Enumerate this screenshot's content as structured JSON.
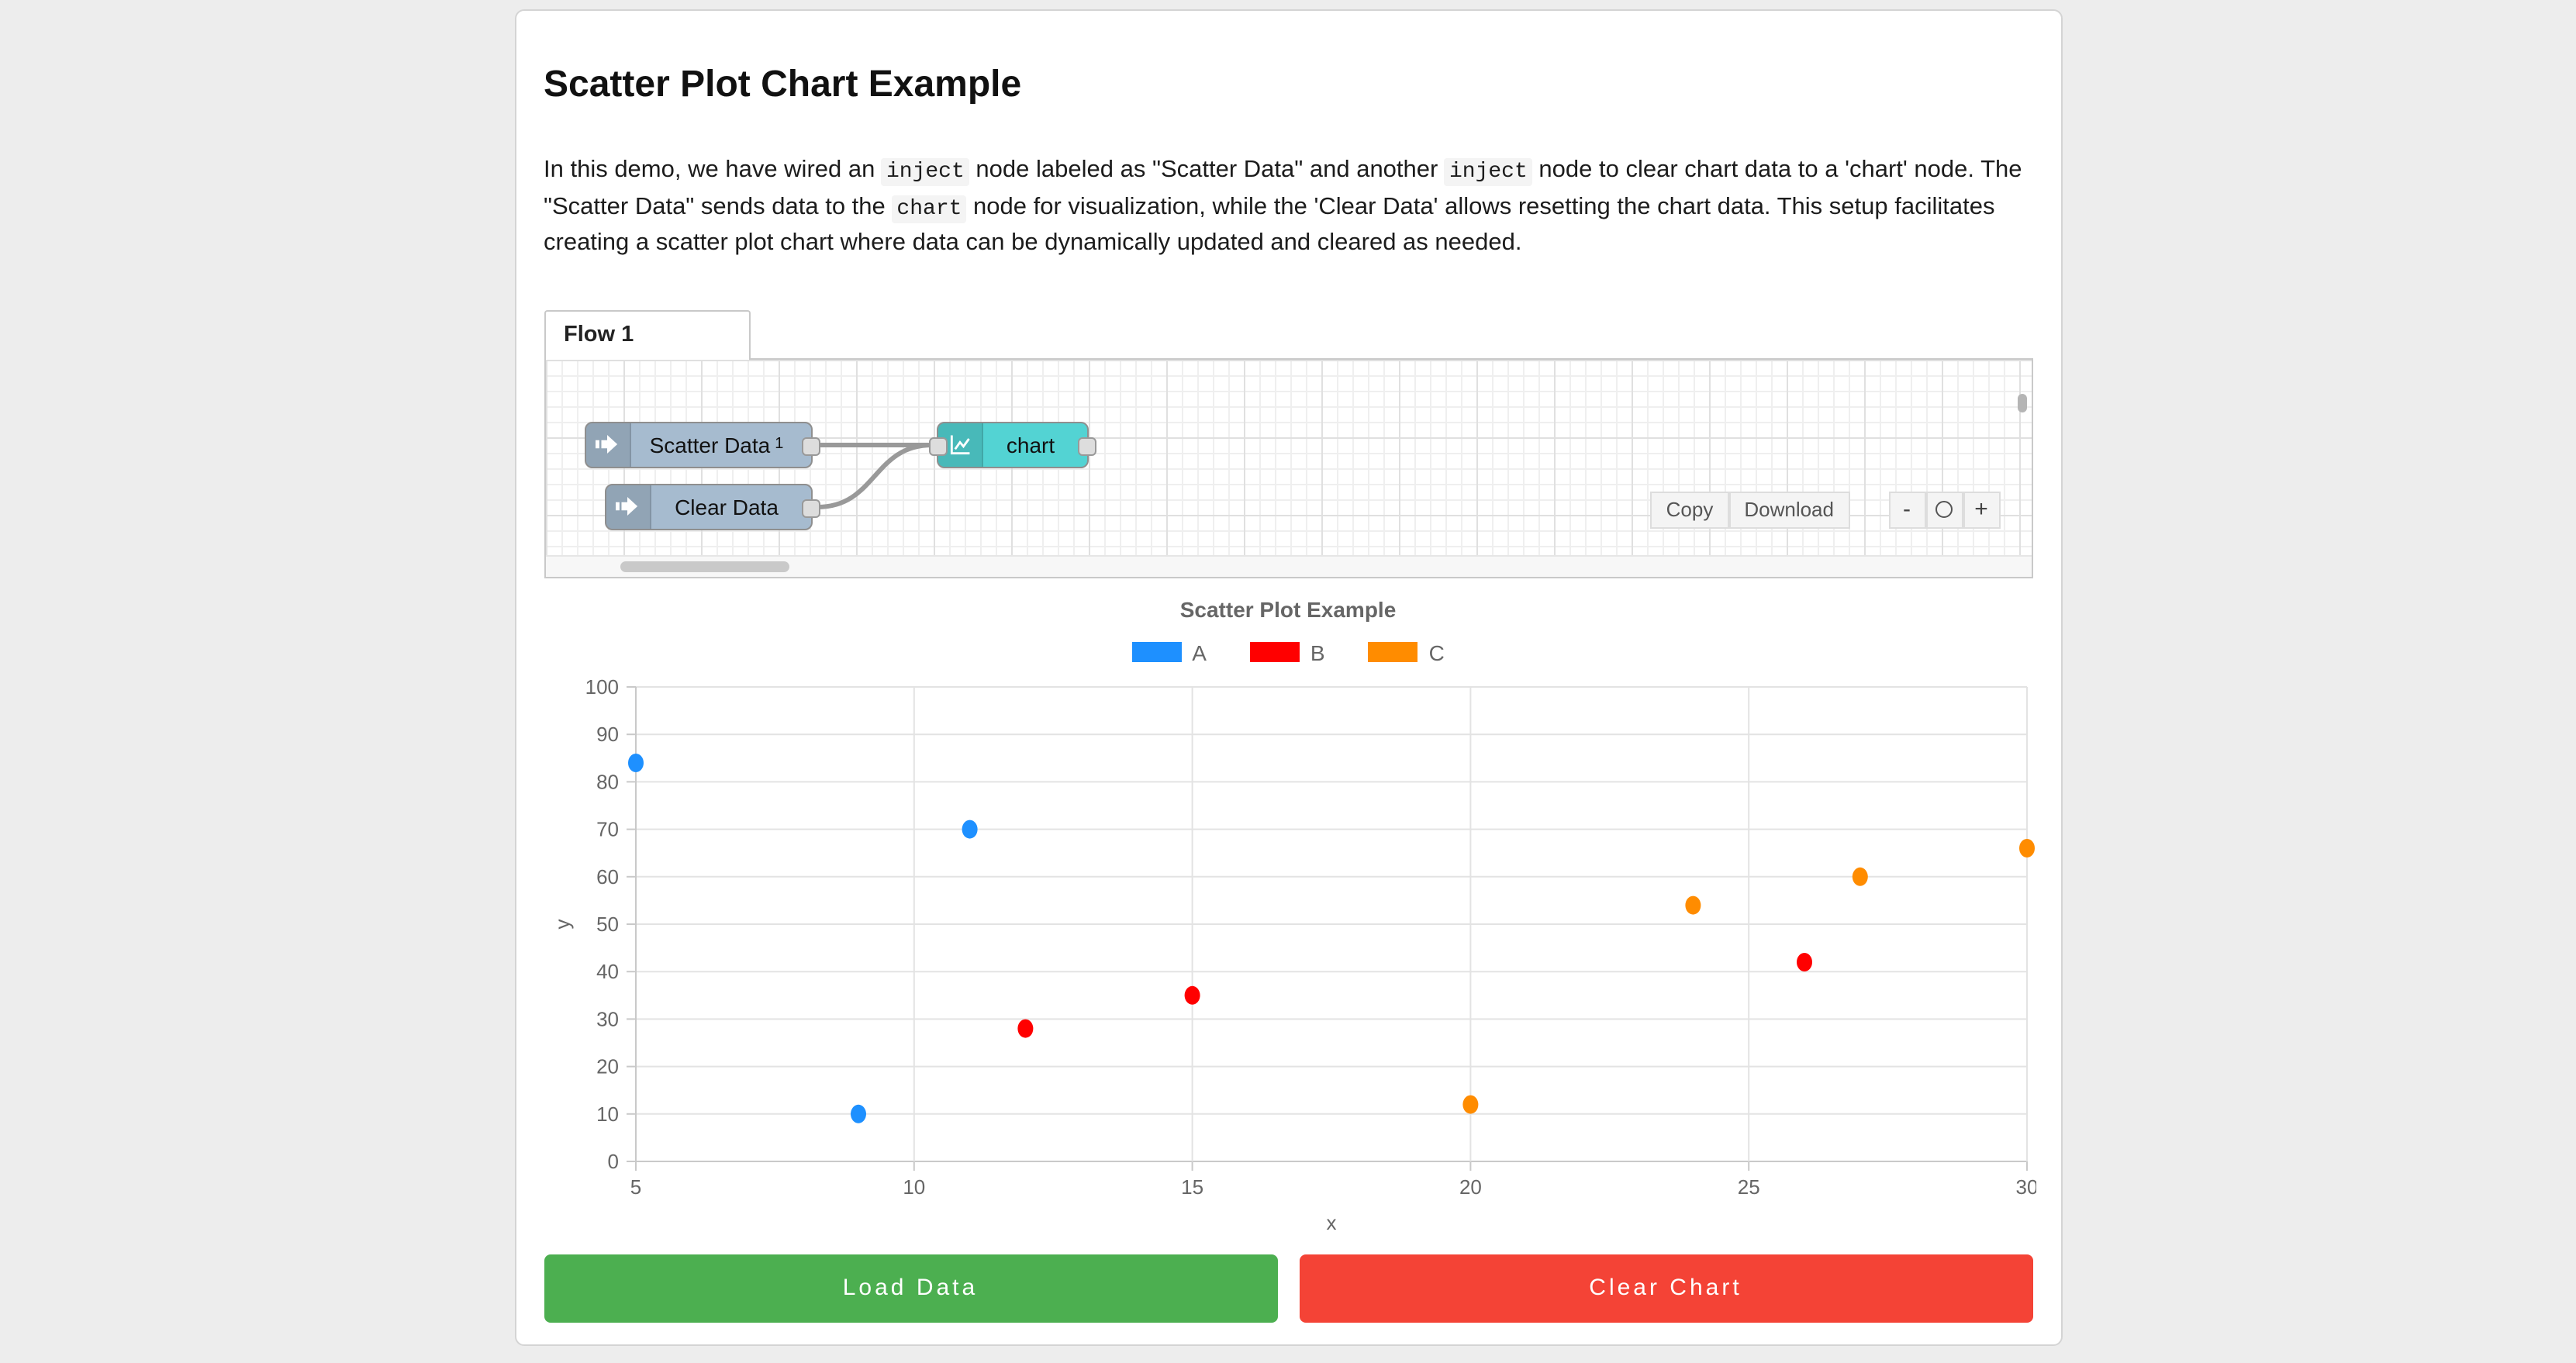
{
  "page": {
    "background": "#ededed"
  },
  "card": {
    "title": "Scatter Plot Chart Example"
  },
  "description": {
    "segments": [
      {
        "text": "In this demo, we have wired an ",
        "code": false
      },
      {
        "text": "inject",
        "code": true
      },
      {
        "text": " node labeled as \"Scatter Data\" and another ",
        "code": false
      },
      {
        "text": "inject",
        "code": true
      },
      {
        "text": " node to clear chart data to a 'chart' node. The \"Scatter Data\" sends data to the ",
        "code": false
      },
      {
        "text": "chart",
        "code": true
      },
      {
        "text": " node for visualization, while the 'Clear Data' allows resetting the chart data. This setup facilitates creating a scatter plot chart where data can be dynamically updated and cleared as needed.",
        "code": false
      }
    ]
  },
  "flow": {
    "tab_label": "Flow 1",
    "nodes": [
      {
        "id": "node-scatter",
        "label": "Scatter Data",
        "sup": "1",
        "type": "inject",
        "color": "#a6bbcf"
      },
      {
        "id": "node-clear",
        "label": "Clear Data",
        "type": "inject",
        "color": "#a6bbcf"
      },
      {
        "id": "node-chart",
        "label": "chart",
        "type": "chart",
        "color": "#53d3d3"
      }
    ],
    "toolbar": {
      "copy_label": "Copy",
      "download_label": "Download"
    },
    "zoom_controls": {
      "zoom_out_label": "-",
      "zoom_reset_icon": "circle",
      "zoom_in_label": "+"
    }
  },
  "chart_data": {
    "type": "scatter",
    "title": "Scatter Plot Example",
    "xlabel": "x",
    "ylabel": "y",
    "xlim": [
      5,
      30
    ],
    "ylim": [
      0,
      100
    ],
    "xticks": [
      5,
      10,
      15,
      20,
      25,
      30
    ],
    "yticks": [
      0,
      10,
      20,
      30,
      40,
      50,
      60,
      70,
      80,
      90,
      100
    ],
    "grid": true,
    "legend_position": "top",
    "series": [
      {
        "name": "A",
        "color": "#1e90ff",
        "points": [
          [
            5,
            84
          ],
          [
            9,
            10
          ],
          [
            11,
            70
          ]
        ]
      },
      {
        "name": "B",
        "color": "#ff0000",
        "points": [
          [
            12,
            28
          ],
          [
            15,
            35
          ],
          [
            26,
            42
          ]
        ]
      },
      {
        "name": "C",
        "color": "#ff8c00",
        "points": [
          [
            20,
            12
          ],
          [
            24,
            54
          ],
          [
            27,
            60
          ],
          [
            30,
            66
          ]
        ]
      }
    ]
  },
  "buttons": [
    {
      "label": "Load Data",
      "color": "#4caf50"
    },
    {
      "label": "Clear Chart",
      "color": "#f44336"
    }
  ]
}
